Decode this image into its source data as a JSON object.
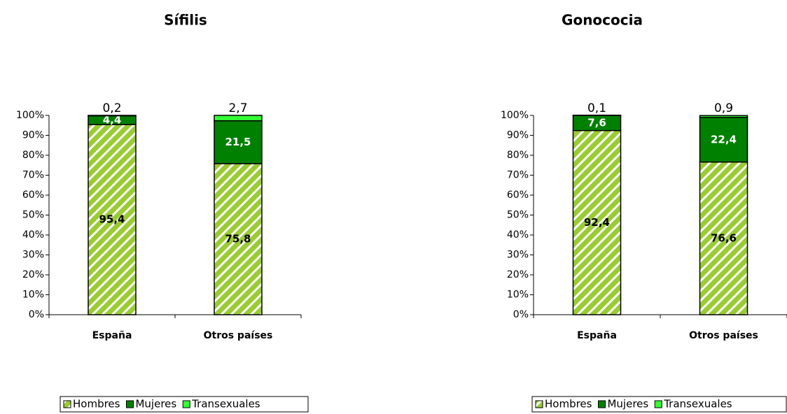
{
  "chart_data": [
    {
      "type": "stacked_bar",
      "title": "Sífilis",
      "categories": [
        "España",
        "Otros países"
      ],
      "series": [
        {
          "name": "Hombres",
          "color": "#99cc33",
          "pattern": "diagonal",
          "values": [
            95.4,
            75.8
          ],
          "value_labels": [
            "95,4",
            "75,8"
          ]
        },
        {
          "name": "Mujeres",
          "color": "#008000",
          "values": [
            4.4,
            21.5
          ],
          "value_labels": [
            "4,4",
            "21,5"
          ]
        },
        {
          "name": "Transexuales",
          "color": "#33ff33",
          "values": [
            0.2,
            2.7
          ],
          "value_labels": [
            "0,2",
            "2,7"
          ]
        }
      ],
      "ylim": [
        0,
        100
      ],
      "yticks": [
        {
          "value": 0,
          "label": "0%"
        },
        {
          "value": 10,
          "label": "10%"
        },
        {
          "value": 20,
          "label": "20%"
        },
        {
          "value": 30,
          "label": "30%"
        },
        {
          "value": 40,
          "label": "40%"
        },
        {
          "value": 50,
          "label": "50%"
        },
        {
          "value": 60,
          "label": "60%"
        },
        {
          "value": 70,
          "label": "70%"
        },
        {
          "value": 80,
          "label": "80%"
        },
        {
          "value": 90,
          "label": "90%"
        },
        {
          "value": 100,
          "label": "100%"
        }
      ],
      "legend": "bottom"
    },
    {
      "type": "stacked_bar",
      "title": "Gonococia",
      "categories": [
        "España",
        "Otros países"
      ],
      "series": [
        {
          "name": "Hombres",
          "color": "#99cc33",
          "pattern": "diagonal",
          "values": [
            92.4,
            76.6
          ],
          "value_labels": [
            "92,4",
            "76,6"
          ]
        },
        {
          "name": "Mujeres",
          "color": "#008000",
          "values": [
            7.6,
            22.4
          ],
          "value_labels": [
            "7,6",
            "22,4"
          ]
        },
        {
          "name": "Transexuales",
          "color": "#33ff33",
          "values": [
            0.1,
            0.9
          ],
          "value_labels": [
            "0,1",
            "0,9"
          ]
        }
      ],
      "ylim": [
        0,
        100
      ],
      "yticks": [
        {
          "value": 0,
          "label": "0%"
        },
        {
          "value": 10,
          "label": "10%"
        },
        {
          "value": 20,
          "label": "20%"
        },
        {
          "value": 30,
          "label": "30%"
        },
        {
          "value": 40,
          "label": "40%"
        },
        {
          "value": 50,
          "label": "50%"
        },
        {
          "value": 60,
          "label": "60%"
        },
        {
          "value": 70,
          "label": "70%"
        },
        {
          "value": 80,
          "label": "80%"
        },
        {
          "value": 90,
          "label": "90%"
        },
        {
          "value": 100,
          "label": "100%"
        }
      ],
      "legend": "bottom"
    }
  ]
}
